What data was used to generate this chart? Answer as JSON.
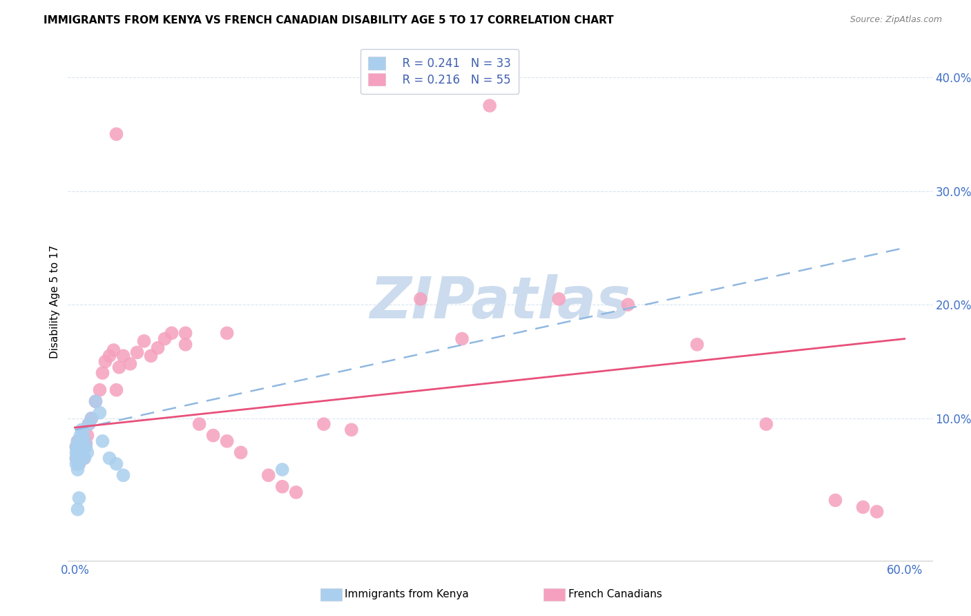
{
  "title": "IMMIGRANTS FROM KENYA VS FRENCH CANADIAN DISABILITY AGE 5 TO 17 CORRELATION CHART",
  "source": "Source: ZipAtlas.com",
  "ylabel": "Disability Age 5 to 17",
  "xlim": [
    -0.005,
    0.62
  ],
  "ylim": [
    -0.025,
    0.43
  ],
  "xtick_positions": [
    0.0,
    0.6
  ],
  "xtick_labels": [
    "0.0%",
    "60.0%"
  ],
  "ytick_positions": [
    0.1,
    0.2,
    0.3,
    0.4
  ],
  "ytick_labels": [
    "10.0%",
    "20.0%",
    "30.0%",
    "40.0%"
  ],
  "grid_yticks": [
    0.1,
    0.2,
    0.3,
    0.4
  ],
  "legend_r1": "R = 0.241",
  "legend_n1": "N = 33",
  "legend_r2": "R = 0.216",
  "legend_n2": "N = 55",
  "color_kenya": "#aacfee",
  "color_french": "#f5a0be",
  "color_watermark": "#ccdcee",
  "kenya_line_x": [
    0.0,
    0.6
  ],
  "kenya_line_y": [
    0.09,
    0.25
  ],
  "french_line_x": [
    0.0,
    0.6
  ],
  "french_line_y": [
    0.092,
    0.17
  ],
  "kenya_x": [
    0.001,
    0.001,
    0.001,
    0.001,
    0.002,
    0.002,
    0.002,
    0.002,
    0.003,
    0.003,
    0.003,
    0.004,
    0.004,
    0.004,
    0.005,
    0.005,
    0.006,
    0.006,
    0.007,
    0.007,
    0.008,
    0.009,
    0.01,
    0.012,
    0.015,
    0.018,
    0.02,
    0.025,
    0.03,
    0.035,
    0.002,
    0.003,
    0.15
  ],
  "kenya_y": [
    0.075,
    0.07,
    0.065,
    0.06,
    0.08,
    0.072,
    0.068,
    0.055,
    0.075,
    0.07,
    0.06,
    0.085,
    0.078,
    0.065,
    0.09,
    0.068,
    0.085,
    0.072,
    0.08,
    0.065,
    0.075,
    0.07,
    0.095,
    0.1,
    0.115,
    0.105,
    0.08,
    0.065,
    0.06,
    0.05,
    0.02,
    0.03,
    0.055
  ],
  "french_x": [
    0.001,
    0.001,
    0.002,
    0.002,
    0.003,
    0.003,
    0.004,
    0.004,
    0.005,
    0.005,
    0.006,
    0.007,
    0.008,
    0.009,
    0.01,
    0.012,
    0.015,
    0.018,
    0.02,
    0.022,
    0.025,
    0.028,
    0.03,
    0.032,
    0.035,
    0.04,
    0.045,
    0.05,
    0.055,
    0.06,
    0.065,
    0.07,
    0.08,
    0.09,
    0.1,
    0.11,
    0.12,
    0.14,
    0.15,
    0.16,
    0.18,
    0.2,
    0.25,
    0.28,
    0.3,
    0.35,
    0.4,
    0.45,
    0.5,
    0.55,
    0.57,
    0.58,
    0.03,
    0.08,
    0.11
  ],
  "french_y": [
    0.075,
    0.065,
    0.08,
    0.07,
    0.072,
    0.06,
    0.078,
    0.068,
    0.082,
    0.072,
    0.065,
    0.075,
    0.078,
    0.085,
    0.095,
    0.1,
    0.115,
    0.125,
    0.14,
    0.15,
    0.155,
    0.16,
    0.125,
    0.145,
    0.155,
    0.148,
    0.158,
    0.168,
    0.155,
    0.162,
    0.17,
    0.175,
    0.165,
    0.095,
    0.085,
    0.08,
    0.07,
    0.05,
    0.04,
    0.035,
    0.095,
    0.09,
    0.205,
    0.17,
    0.375,
    0.205,
    0.2,
    0.165,
    0.095,
    0.028,
    0.022,
    0.018,
    0.35,
    0.175,
    0.175
  ]
}
